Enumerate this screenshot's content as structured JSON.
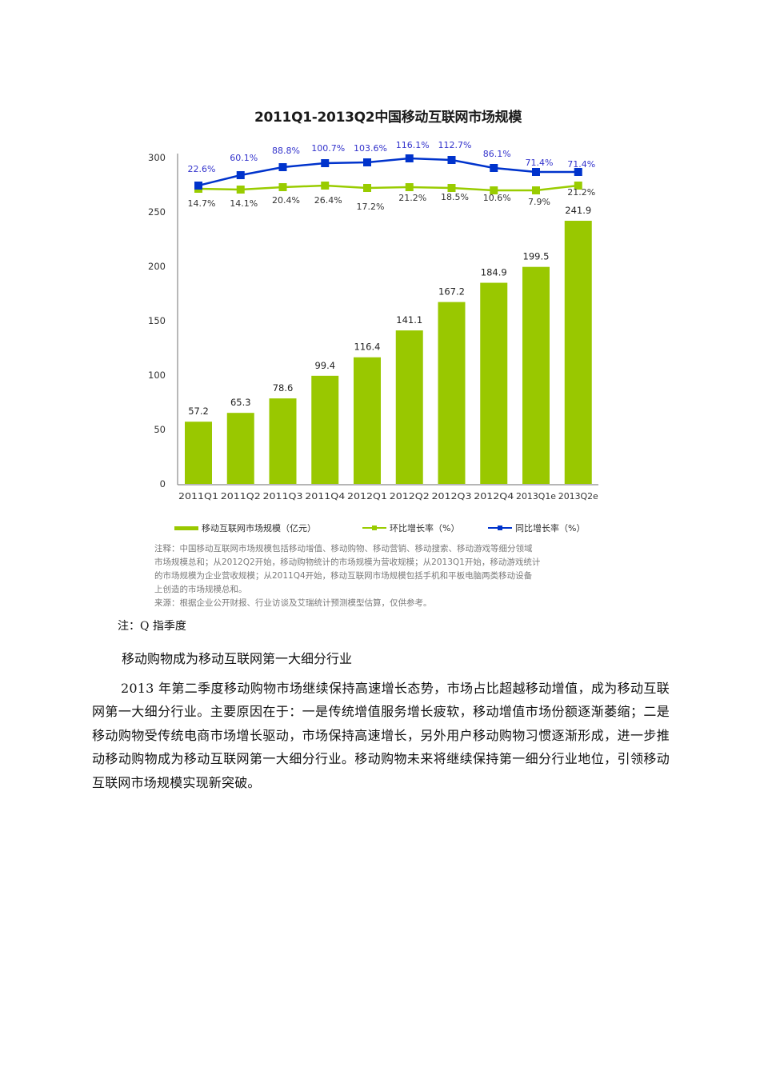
{
  "chart": {
    "title": "2011Q1-2013Q2中国移动互联网市场规模",
    "legend": {
      "bar_label": "移动互联网市场规模（亿元）",
      "qoq_label": "环比增长率（%）",
      "yoy_label": "同比增长率（%）"
    },
    "notes": {
      "line1": "注释：中国移动互联网市场规模包括移动增值、移动购物、移动营销、移动搜索、移动游戏等细分领域",
      "line2": "市场规模总和；从2012Q2开始，移动购物统计的市场规模为营收规模；从2013Q1开始，移动游戏统计",
      "line3": "的市场规模为企业营收规模；从2011Q4开始，移动互联网市场规模包括手机和平板电脑两类移动设备",
      "line4": "上创造的市场规模总和。",
      "source": "来源：根据企业公开财报、行业访谈及艾瑞统计预测模型估算，仅供参考。"
    },
    "colors": {
      "bar": "#99c800",
      "qoq": "#99cc00",
      "yoy": "#0033cc",
      "yoy_label": "#3333cc"
    }
  },
  "chart_data": {
    "type": "bar",
    "title": "2011Q1-2013Q2中国移动互联网市场规模",
    "categories": [
      "2011Q1",
      "2011Q2",
      "2011Q3",
      "2011Q4",
      "2012Q1",
      "2012Q2",
      "2012Q3",
      "2012Q4",
      "2013Q1e",
      "2013Q2e"
    ],
    "series": [
      {
        "name": "移动互联网市场规模（亿元）",
        "type": "bar",
        "values": [
          57.2,
          65.3,
          78.6,
          99.4,
          116.4,
          141.1,
          167.2,
          184.9,
          199.5,
          241.9
        ]
      },
      {
        "name": "环比增长率（%）",
        "type": "line",
        "values": [
          14.7,
          14.1,
          20.4,
          26.4,
          17.2,
          21.2,
          18.5,
          10.6,
          7.9,
          21.2
        ]
      },
      {
        "name": "同比增长率（%）",
        "type": "line",
        "values": [
          22.6,
          60.1,
          88.8,
          100.7,
          103.6,
          116.1,
          112.7,
          86.1,
          71.4,
          71.4
        ]
      }
    ],
    "value_labels": [
      "57.2",
      "65.3",
      "78.6",
      "99.4",
      "116.4",
      "141.1",
      "167.2",
      "184.9",
      "199.5",
      "241.9"
    ],
    "qoq_labels": [
      "14.7%",
      "14.1%",
      "20.4%",
      "26.4%",
      "17.2%",
      "21.2%",
      "18.5%",
      "10.6%",
      "7.9%",
      "21.2%"
    ],
    "yoy_labels": [
      "22.6%",
      "60.1%",
      "88.8%",
      "100.7%",
      "103.6%",
      "116.1%",
      "112.7%",
      "86.1%",
      "71.4%",
      "71.4%"
    ],
    "yticks": [
      "0",
      "50",
      "100",
      "150",
      "200",
      "250",
      "300"
    ],
    "xlabel": "",
    "ylabel": "",
    "ylim": [
      0,
      300
    ],
    "grid": false,
    "legend_position": "bottom"
  },
  "document": {
    "q_note": "注：Q 指季度",
    "heading": "移动购物成为移动互联网第一大细分行业",
    "paragraph": "2013 年第二季度移动购物市场继续保持高速增长态势，市场占比超越移动增值，成为移动互联网第一大细分行业。主要原因在于：一是传统增值服务增长疲软，移动增值市场份额逐渐萎缩；二是移动购物受传统电商市场增长驱动，市场保持高速增长，另外用户移动购物习惯逐渐形成，进一步推动移动购物成为移动互联网第一大细分行业。移动购物未来将继续保持第一细分行业地位，引领移动互联网市场规模实现新突破。"
  }
}
